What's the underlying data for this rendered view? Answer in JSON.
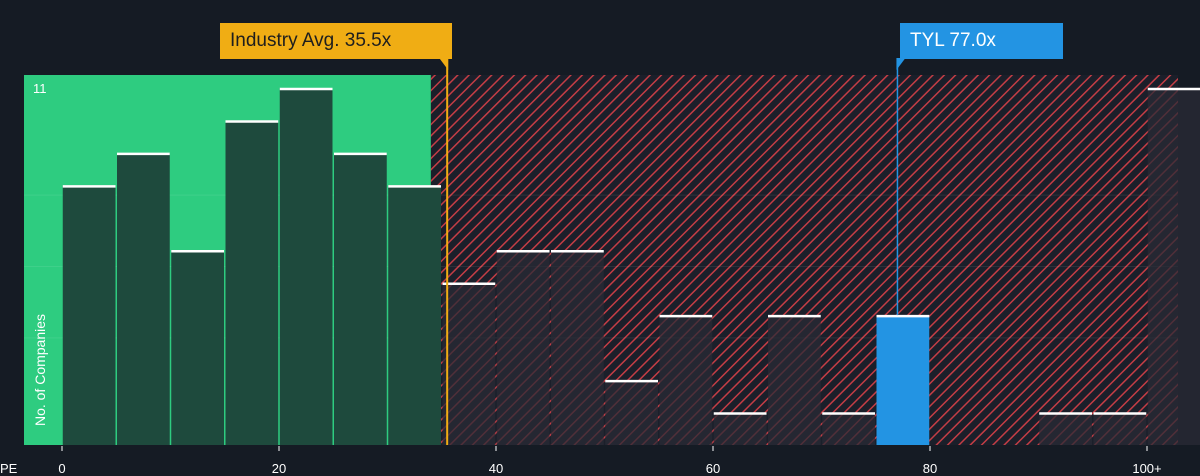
{
  "chart_data": {
    "type": "bar",
    "xlabel": "PE",
    "ylabel": "No. of Companies",
    "x_tick_labels": [
      "0",
      "20",
      "40",
      "60",
      "80",
      "100+"
    ],
    "x_ticks": [
      0,
      20,
      40,
      60,
      80,
      100
    ],
    "xlim": [
      -5,
      102.5
    ],
    "ylim": [
      0,
      11.4
    ],
    "y_tick_label": "11",
    "bin_width": 5,
    "bins": [
      {
        "start": 0,
        "value": 8
      },
      {
        "start": 5,
        "value": 9
      },
      {
        "start": 10,
        "value": 6
      },
      {
        "start": 15,
        "value": 10
      },
      {
        "start": 20,
        "value": 11
      },
      {
        "start": 25,
        "value": 9
      },
      {
        "start": 30,
        "value": 8
      },
      {
        "start": 35,
        "value": 5
      },
      {
        "start": 40,
        "value": 6
      },
      {
        "start": 45,
        "value": 6
      },
      {
        "start": 50,
        "value": 2
      },
      {
        "start": 55,
        "value": 4
      },
      {
        "start": 60,
        "value": 1
      },
      {
        "start": 65,
        "value": 4
      },
      {
        "start": 70,
        "value": 1
      },
      {
        "start": 75,
        "value": 4
      },
      {
        "start": 80,
        "value": 0
      },
      {
        "start": 85,
        "value": 0
      },
      {
        "start": 90,
        "value": 1
      },
      {
        "start": 95,
        "value": 1
      },
      {
        "start": 100,
        "value": 11
      }
    ],
    "fair_zone_end": 34,
    "industry_avg": {
      "value": 35.5,
      "label": "Industry Avg. 35.5x"
    },
    "company": {
      "value": 77.0,
      "label": "TYL 77.0x",
      "bin_start": 75
    },
    "colors": {
      "background": "#151b24",
      "fair_zone": "#2ecc80",
      "fair_bar": "#1e4a3d",
      "over_bar": "#2a2b36",
      "hatch": "#c43d45",
      "industry": "#f0ad14",
      "company": "#2394e3",
      "bar_cap": "#ffffff"
    }
  }
}
